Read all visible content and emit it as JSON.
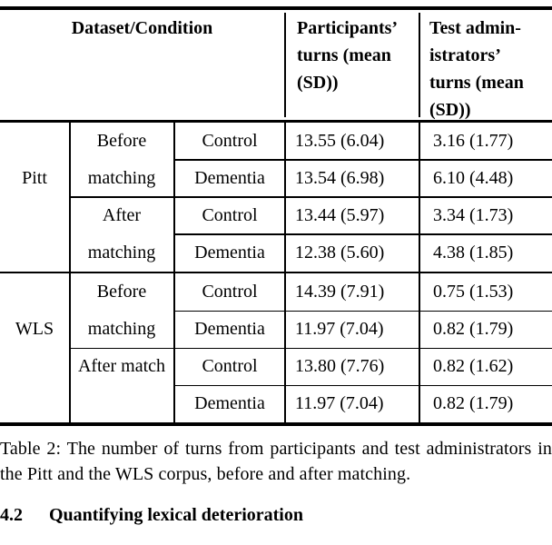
{
  "table": {
    "header": {
      "dataset_condition": "Dataset/Condition",
      "participants_lines": [
        "Participants’",
        "turns (mean",
        "(SD))"
      ],
      "test_administrators_lines": [
        "Test admin-",
        "istrators’",
        "turns (mean",
        "(SD))"
      ]
    },
    "blocks": [
      {
        "dataset": "Pitt",
        "groups": [
          {
            "condition": "Before matching",
            "rows": [
              {
                "group": "Control",
                "participants": "13.55 (6.04)",
                "administrators": "3.16 (1.77)"
              },
              {
                "group": "Dementia",
                "participants": "13.54 (6.98)",
                "administrators": "6.10 (4.48)"
              }
            ]
          },
          {
            "condition": "After matching",
            "rows": [
              {
                "group": "Control",
                "participants": "13.44 (5.97)",
                "administrators": "3.34 (1.73)"
              },
              {
                "group": "Dementia",
                "participants": "12.38 (5.60)",
                "administrators": "4.38 (1.85)"
              }
            ]
          }
        ]
      },
      {
        "dataset": "WLS",
        "groups": [
          {
            "condition": "Before matching",
            "rows": [
              {
                "group": "Control",
                "participants": "14.39 (7.91)",
                "administrators": "0.75 (1.53)"
              },
              {
                "group": "Dementia",
                "participants": "11.97 (7.04)",
                "administrators": "0.82 (1.79)"
              }
            ]
          },
          {
            "condition": "After match",
            "rows": [
              {
                "group": "Control",
                "participants": "13.80 (7.76)",
                "administrators": "0.82 (1.62)"
              },
              {
                "group": "Dementia",
                "participants": "11.97 (7.04)",
                "administrators": "0.82 (1.79)"
              }
            ]
          }
        ]
      }
    ]
  },
  "caption": "Table 2: The number of turns from participants and test administrators in the Pitt and the WLS corpus, before and after matching.",
  "next_section": {
    "number": "4.2",
    "title": "Quantifying lexical deterioration"
  }
}
